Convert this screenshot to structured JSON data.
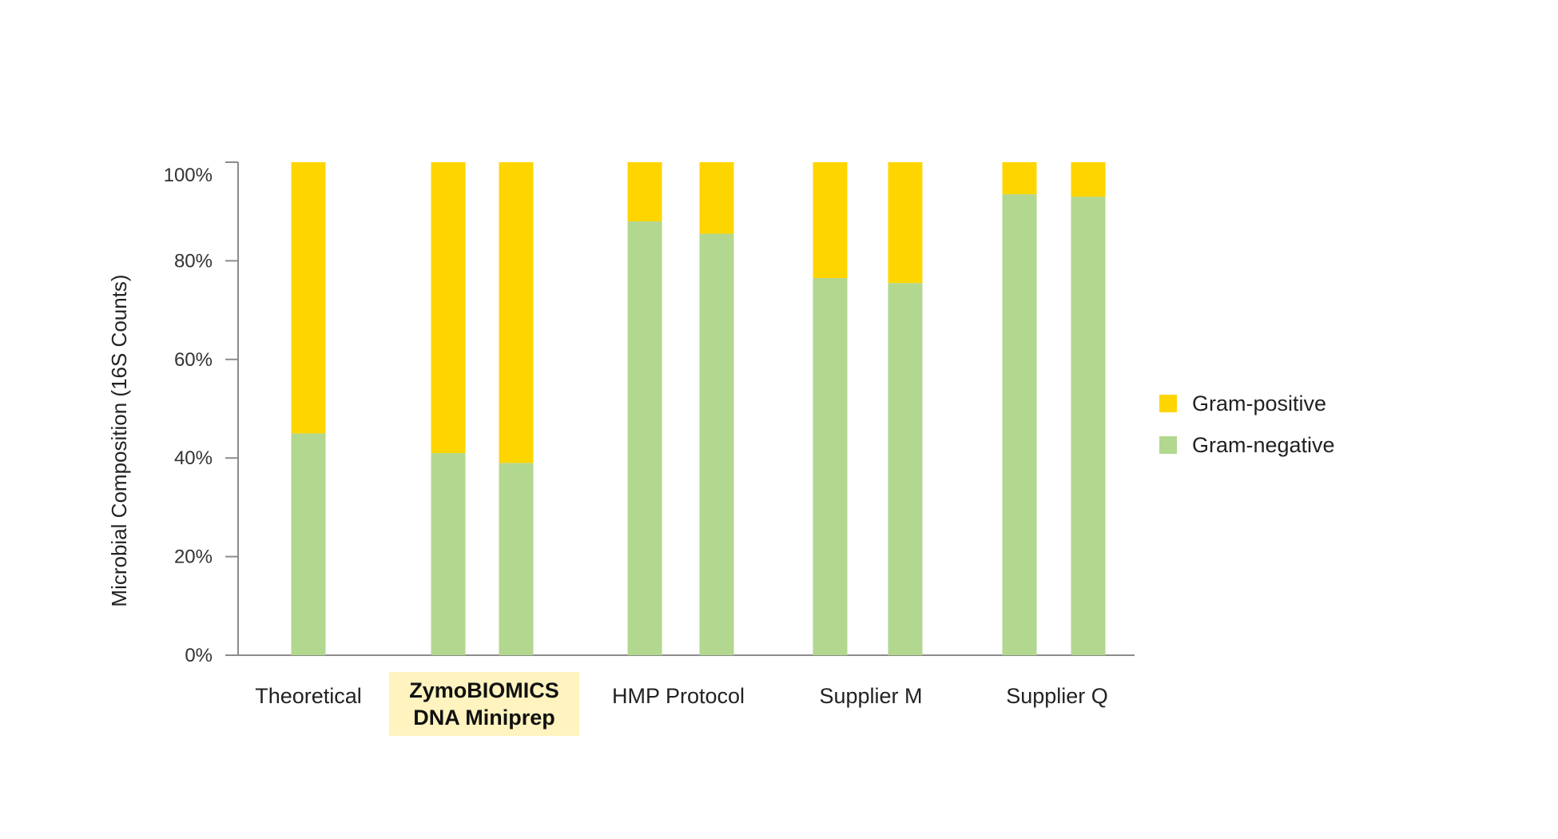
{
  "chart_data": {
    "type": "bar",
    "stacked": true,
    "ylabel": "Microbial Composition (16S Counts)",
    "ylim": [
      0,
      100
    ],
    "yticks": [
      "0%",
      "20%",
      "40%",
      "60%",
      "80%",
      "100%"
    ],
    "groups": [
      {
        "label": "Theoretical",
        "highlight": false,
        "bars": [
          {
            "gram_negative": 45,
            "gram_positive": 55
          }
        ]
      },
      {
        "label": "ZymoBIOMICS\nDNA Miniprep",
        "highlight": true,
        "bars": [
          {
            "gram_negative": 41,
            "gram_positive": 59
          },
          {
            "gram_negative": 39,
            "gram_positive": 61
          }
        ]
      },
      {
        "label": "HMP Protocol",
        "highlight": false,
        "bars": [
          {
            "gram_negative": 88,
            "gram_positive": 12
          },
          {
            "gram_negative": 85.5,
            "gram_positive": 14.5
          }
        ]
      },
      {
        "label": "Supplier M",
        "highlight": false,
        "bars": [
          {
            "gram_negative": 76.5,
            "gram_positive": 23.5
          },
          {
            "gram_negative": 75.5,
            "gram_positive": 24.5
          }
        ]
      },
      {
        "label": "Supplier Q",
        "highlight": false,
        "bars": [
          {
            "gram_negative": 93.5,
            "gram_positive": 6.5
          },
          {
            "gram_negative": 93,
            "gram_positive": 7
          }
        ]
      }
    ],
    "series": [
      {
        "name": "Gram-positive",
        "key": "gram_positive",
        "color": "#ffd500"
      },
      {
        "name": "Gram-negative",
        "key": "gram_negative",
        "color": "#b2d78f"
      }
    ],
    "legend_position": "right",
    "grid": false
  }
}
